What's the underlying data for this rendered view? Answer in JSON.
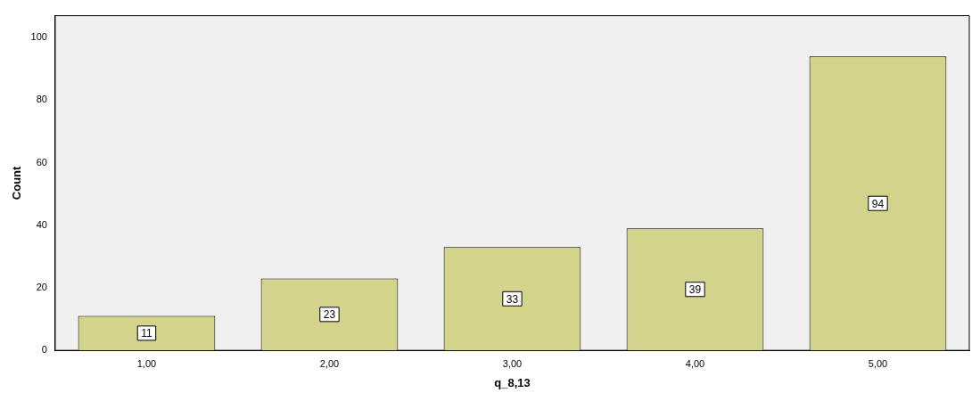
{
  "chart_data": {
    "type": "bar",
    "xlabel": "q_8,13",
    "ylabel": "Count",
    "categories": [
      "1,00",
      "2,00",
      "3,00",
      "4,00",
      "5,00"
    ],
    "values": [
      11,
      23,
      33,
      39,
      94
    ],
    "color": "#d3d38c",
    "ylim": [
      0,
      107
    ],
    "yticks": [
      0,
      20,
      40,
      60,
      80,
      100
    ],
    "data_labels": true,
    "grid": false,
    "legend": false
  }
}
